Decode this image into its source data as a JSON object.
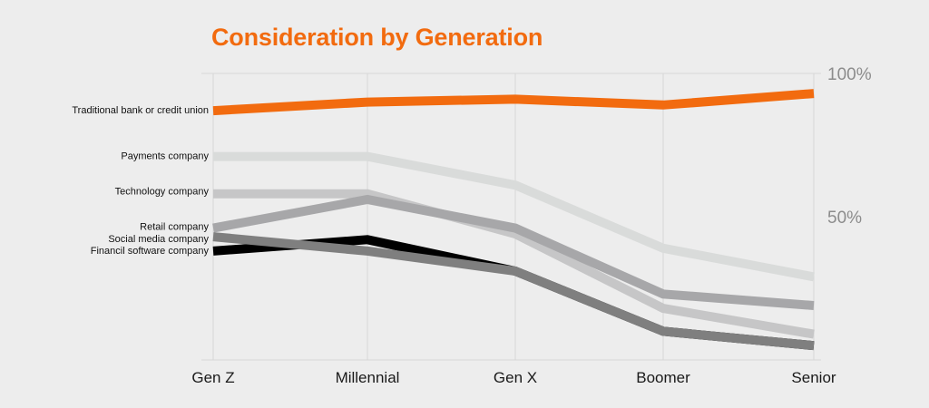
{
  "chart_data": {
    "type": "line",
    "title": "Consideration by Generation",
    "categories": [
      "Gen Z",
      "Millennial",
      "Gen X",
      "Boomer",
      "Senior"
    ],
    "ylim": [
      0,
      100
    ],
    "y_tick_labels": [
      {
        "value": 100,
        "label": "100%"
      },
      {
        "value": 50,
        "label": "50%"
      }
    ],
    "grid": true,
    "series": [
      {
        "name": "Financil software company",
        "color": "#000000",
        "values": [
          38,
          42,
          31,
          10,
          5
        ]
      },
      {
        "name": "Social media company",
        "color": "#7f7f7f",
        "values": [
          43,
          38,
          31,
          10,
          5
        ]
      },
      {
        "name": "Retail company",
        "color": "#a7a7a9",
        "values": [
          46,
          56,
          46,
          23,
          19
        ]
      },
      {
        "name": "Technology company",
        "color": "#c6c6c7",
        "values": [
          58,
          58,
          44,
          18,
          9
        ]
      },
      {
        "name": "Payments company",
        "color": "#d9dbda",
        "values": [
          71,
          71,
          61,
          39,
          29
        ]
      },
      {
        "name": "Traditional bank or credit union",
        "color": "#f26b0f",
        "values": [
          87,
          90,
          91,
          89,
          93
        ]
      }
    ]
  }
}
